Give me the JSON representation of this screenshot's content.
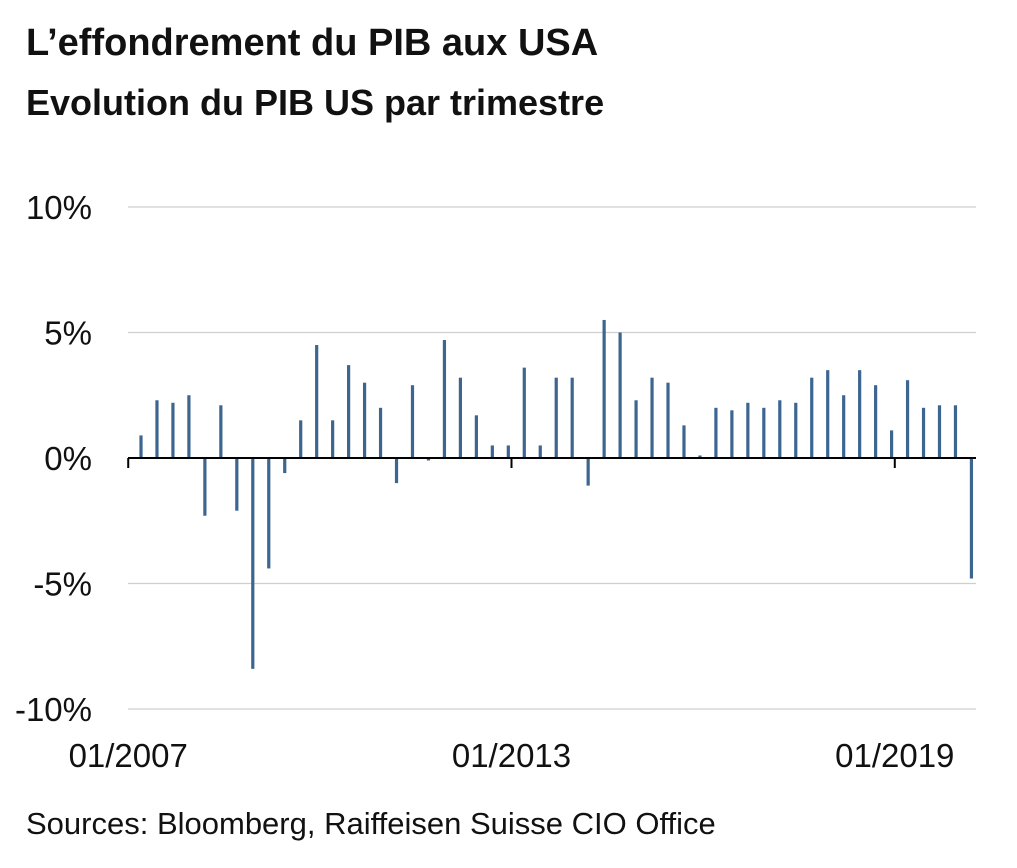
{
  "header": {
    "title": "L’effondrement du PIB aux USA",
    "subtitle": "Evolution du PIB US par trimestre"
  },
  "footer": {
    "source": "Sources: Bloomberg, Raiffeisen Suisse CIO Office"
  },
  "chart_data": {
    "type": "bar",
    "title": "L’effondrement du PIB aux USA",
    "subtitle": "Evolution du PIB US par trimestre",
    "xlabel": "",
    "ylabel": "",
    "ylim": [
      -10,
      10
    ],
    "y_ticks": [
      10,
      5,
      0,
      -5,
      -10
    ],
    "y_tick_labels": [
      "10%",
      "5%",
      "0%",
      "-5%",
      "-10%"
    ],
    "x_tick_labels": [
      {
        "label": "01/2007",
        "category": "2007Q1"
      },
      {
        "label": "01/2013",
        "category": "2013Q1"
      },
      {
        "label": "01/2019",
        "category": "2019Q1"
      }
    ],
    "grid": true,
    "bar_color": "#3c6590",
    "categories": [
      "2007Q1",
      "2007Q2",
      "2007Q3",
      "2007Q4",
      "2008Q1",
      "2008Q2",
      "2008Q3",
      "2008Q4",
      "2009Q1",
      "2009Q2",
      "2009Q3",
      "2009Q4",
      "2010Q1",
      "2010Q2",
      "2010Q3",
      "2010Q4",
      "2011Q1",
      "2011Q2",
      "2011Q3",
      "2011Q4",
      "2012Q1",
      "2012Q2",
      "2012Q3",
      "2012Q4",
      "2013Q1",
      "2013Q2",
      "2013Q3",
      "2013Q4",
      "2014Q1",
      "2014Q2",
      "2014Q3",
      "2014Q4",
      "2015Q1",
      "2015Q2",
      "2015Q3",
      "2015Q4",
      "2016Q1",
      "2016Q2",
      "2016Q3",
      "2016Q4",
      "2017Q1",
      "2017Q2",
      "2017Q3",
      "2017Q4",
      "2018Q1",
      "2018Q2",
      "2018Q3",
      "2018Q4",
      "2019Q1",
      "2019Q2",
      "2019Q3",
      "2019Q4",
      "2020Q1"
    ],
    "values": [
      0.9,
      2.3,
      2.2,
      2.5,
      -2.3,
      2.1,
      -2.1,
      -8.4,
      -4.4,
      -0.6,
      1.5,
      4.5,
      1.5,
      3.7,
      3.0,
      2.0,
      -1.0,
      2.9,
      -0.1,
      4.7,
      3.2,
      1.7,
      0.5,
      0.5,
      3.6,
      0.5,
      3.2,
      3.2,
      -1.1,
      5.5,
      5.0,
      2.3,
      3.2,
      3.0,
      1.3,
      0.1,
      2.0,
      1.9,
      2.2,
      2.0,
      2.3,
      2.2,
      3.2,
      3.5,
      2.5,
      3.5,
      2.9,
      1.1,
      3.1,
      2.0,
      2.1,
      2.1,
      -4.8
    ]
  }
}
